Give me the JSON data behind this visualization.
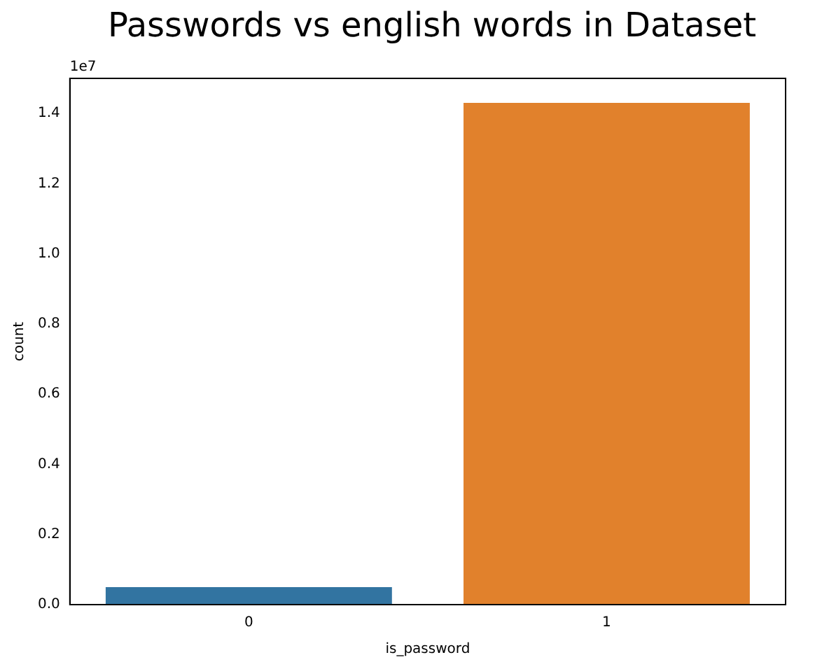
{
  "chart_data": {
    "type": "bar",
    "title": "Passwords vs english words in Dataset",
    "xlabel": "is_password",
    "ylabel": "count",
    "categories": [
      "0",
      "1"
    ],
    "values": [
      0.05,
      1.43
    ],
    "colors": [
      "#3274a1",
      "#e1812c"
    ],
    "ylim": [
      0,
      1.5
    ],
    "yticks": [
      {
        "value": 0,
        "label": "0.0"
      },
      0.2,
      0.4,
      0.6,
      0.8,
      {
        "value": 1,
        "label": "1.0"
      },
      1.2,
      1.4
    ],
    "annotations": [
      "1e7"
    ],
    "grid": false,
    "legend": false
  }
}
